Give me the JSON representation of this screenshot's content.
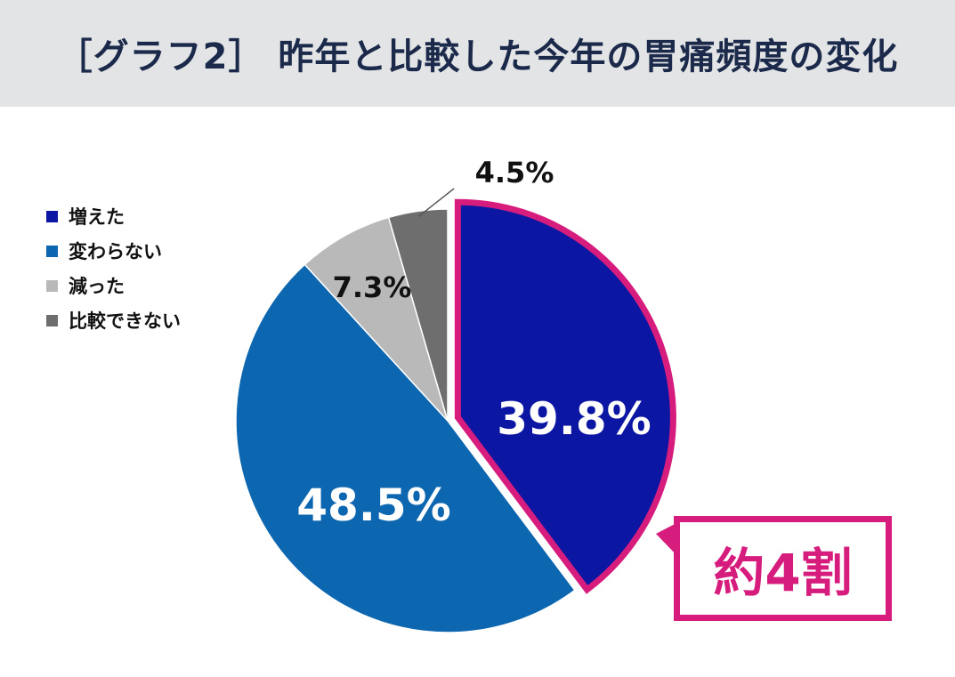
{
  "title": "［グラフ2］ 昨年と比較した今年の胃痛頻度の変化",
  "callout": {
    "text": "約4割",
    "color": "#d61d7d"
  },
  "chart_data": {
    "type": "pie",
    "title": "［グラフ2］ 昨年と比較した今年の胃痛頻度の変化",
    "legend_position": "left",
    "start": "12 o'clock, clockwise",
    "slices": [
      {
        "label": "増えた",
        "value": 39.8,
        "value_label": "39.8%",
        "color": "#0b16a3",
        "highlighted": true
      },
      {
        "label": "変わらない",
        "value": 48.5,
        "value_label": "48.5%",
        "color": "#0d66b0"
      },
      {
        "label": "減った",
        "value": 7.3,
        "value_label": "7.3%",
        "color": "#b9b9b9"
      },
      {
        "label": "比較できない",
        "value": 4.5,
        "value_label": "4.5%",
        "color": "#6e6e6e"
      }
    ]
  }
}
